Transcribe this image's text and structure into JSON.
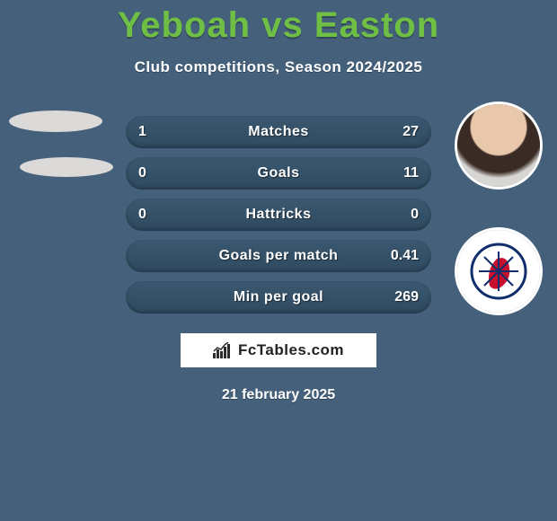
{
  "header": {
    "title": "Yeboah vs Easton",
    "subtitle": "Club competitions, Season 2024/2025"
  },
  "stats": {
    "rows": [
      {
        "label": "Matches",
        "left": "1",
        "right": "27"
      },
      {
        "label": "Goals",
        "left": "0",
        "right": "11"
      },
      {
        "label": "Hattricks",
        "left": "0",
        "right": "0"
      },
      {
        "label": "Goals per match",
        "left": "",
        "right": "0.41"
      },
      {
        "label": "Min per goal",
        "left": "",
        "right": "269"
      }
    ],
    "pill_bg_top": "#3a5870",
    "pill_bg_bottom": "#2f4a60",
    "label_color": "#ffffff",
    "value_color": "#ffffff",
    "label_fontsize": 16,
    "value_fontsize": 16
  },
  "avatars": {
    "right_club_badge_color": "#0f2e6b",
    "right_club_accent": "#c8102e"
  },
  "branding": {
    "text": "FcTables.com",
    "icon_color": "#2b2b2b",
    "bg": "#ffffff"
  },
  "footer": {
    "date": "21 february 2025"
  },
  "theme": {
    "page_bg": "#44607a",
    "title_color": "#6fbf44",
    "text_color": "#ffffff"
  }
}
